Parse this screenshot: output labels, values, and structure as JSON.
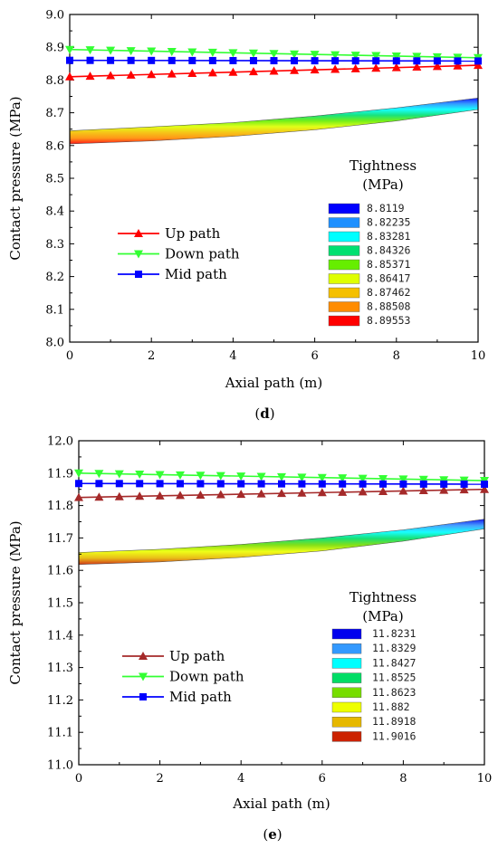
{
  "chart_data": [
    {
      "type": "line",
      "panel_label": "d",
      "xlabel": "Axial path (m)",
      "ylabel": "Contact pressure (MPa)",
      "xlim": [
        0,
        10
      ],
      "ylim": [
        8.0,
        9.0
      ],
      "x_ticks": [
        "0",
        "2",
        "4",
        "6",
        "8",
        "10"
      ],
      "y_ticks": [
        "8.0",
        "8.1",
        "8.2",
        "8.3",
        "8.4",
        "8.5",
        "8.6",
        "8.7",
        "8.8",
        "8.9",
        "9.0"
      ],
      "series": [
        {
          "name": "Up path",
          "color": "#ff0000",
          "marker": "triangle-up",
          "x": [
            0,
            10
          ],
          "y": [
            8.81,
            8.845
          ]
        },
        {
          "name": "Down path",
          "color": "#33ff33",
          "marker": "triangle-down",
          "x": [
            0,
            10
          ],
          "y": [
            8.893,
            8.868
          ]
        },
        {
          "name": "Mid path",
          "color": "#0000ff",
          "marker": "square",
          "x": [
            0,
            10
          ],
          "y": [
            8.86,
            8.858
          ]
        }
      ],
      "band": {
        "x": [
          0,
          2,
          4,
          6,
          8,
          10
        ],
        "y_top": [
          8.645,
          8.657,
          8.67,
          8.69,
          8.715,
          8.745
        ],
        "y_bottom": [
          8.605,
          8.614,
          8.628,
          8.648,
          8.675,
          8.71
        ]
      },
      "colorbar": {
        "title": [
          "Tightness",
          "(MPa)"
        ],
        "colors": [
          "#0000ff",
          "#1e90ff",
          "#00ffff",
          "#00e070",
          "#66ee00",
          "#dfff00",
          "#f5c000",
          "#ff8c00",
          "#ff0000"
        ],
        "labels": [
          "8.8119",
          "8.82235",
          "8.83281",
          "8.84326",
          "8.85371",
          "8.86417",
          "8.87462",
          "8.88508",
          "8.89553"
        ]
      },
      "legend_position": "left-middle",
      "grid": false
    },
    {
      "type": "line",
      "panel_label": "e",
      "xlabel": "Axial path (m)",
      "ylabel": "Contact pressure (MPa)",
      "xlim": [
        0,
        10
      ],
      "ylim": [
        11.0,
        12.0
      ],
      "x_ticks": [
        "0",
        "2",
        "4",
        "6",
        "8",
        "10"
      ],
      "y_ticks": [
        "11.0",
        "11.1",
        "11.2",
        "11.3",
        "11.4",
        "11.5",
        "11.6",
        "11.7",
        "11.8",
        "11.9",
        "12.0"
      ],
      "series": [
        {
          "name": "Up path",
          "color": "#a52a2a",
          "marker": "triangle-up",
          "x": [
            0,
            10
          ],
          "y": [
            11.825,
            11.85
          ]
        },
        {
          "name": "Down path",
          "color": "#33ff33",
          "marker": "triangle-down",
          "x": [
            0,
            10
          ],
          "y": [
            11.9,
            11.877
          ]
        },
        {
          "name": "Mid path",
          "color": "#0000ff",
          "marker": "square",
          "x": [
            0,
            10
          ],
          "y": [
            11.868,
            11.866
          ]
        }
      ],
      "band": {
        "x": [
          0,
          2,
          4,
          6,
          8,
          10
        ],
        "y_top": [
          11.655,
          11.665,
          11.68,
          11.7,
          11.725,
          11.758
        ],
        "y_bottom": [
          11.618,
          11.626,
          11.64,
          11.66,
          11.69,
          11.728
        ]
      },
      "colorbar": {
        "title": [
          "Tightness",
          "(MPa)"
        ],
        "colors": [
          "#0000ee",
          "#3399ff",
          "#00ffff",
          "#00dd66",
          "#77dd00",
          "#eeff00",
          "#e6b800",
          "#cc2200"
        ],
        "labels": [
          "11.8231",
          "11.8329",
          "11.8427",
          "11.8525",
          "11.8623",
          "11.882",
          "11.8918",
          "11.9016"
        ]
      },
      "legend_position": "left-middle",
      "grid": false
    }
  ]
}
